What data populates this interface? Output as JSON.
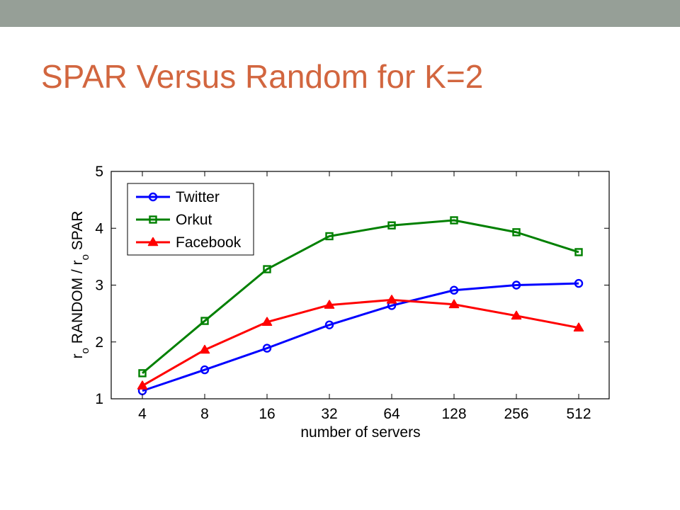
{
  "slide": {
    "title": "SPAR Versus Random for K=2"
  },
  "colors": {
    "top_bar": "#969f97",
    "title": "#d2663f"
  },
  "chart_data": {
    "type": "line",
    "title": "",
    "xlabel": "number of servers",
    "ylabel": {
      "parts": [
        "r",
        "o",
        " RANDOM / r",
        "o",
        " SPAR"
      ]
    },
    "x_scale": "log2",
    "categories": [
      "4",
      "8",
      "16",
      "32",
      "64",
      "128",
      "256",
      "512"
    ],
    "x": [
      4,
      8,
      16,
      32,
      64,
      128,
      256,
      512
    ],
    "y_ticks": [
      "1",
      "2",
      "3",
      "4",
      "5"
    ],
    "ylim": [
      1,
      5
    ],
    "grid": false,
    "legend": "top-left",
    "series": [
      {
        "name": "Twitter",
        "color": "#0000ff",
        "marker": "circle",
        "values": [
          1.14,
          1.51,
          1.89,
          2.3,
          2.64,
          2.91,
          3.0,
          3.03
        ]
      },
      {
        "name": "Orkut",
        "color": "#008000",
        "marker": "square",
        "values": [
          1.45,
          2.37,
          3.28,
          3.86,
          4.05,
          4.14,
          3.93,
          3.58
        ]
      },
      {
        "name": "Facebook",
        "color": "#ff0000",
        "marker": "triangle",
        "values": [
          1.23,
          1.86,
          2.35,
          2.65,
          2.74,
          2.66,
          2.46,
          2.25
        ]
      }
    ]
  }
}
